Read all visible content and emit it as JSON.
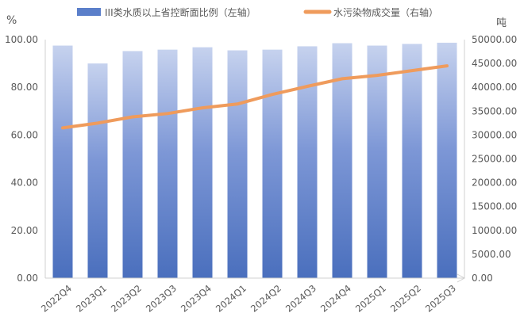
{
  "chart_data": {
    "type": "bar",
    "categories": [
      "2022Q4",
      "2023Q1",
      "2023Q2",
      "2023Q3",
      "2023Q4",
      "2024Q1",
      "2024Q2",
      "2024Q3",
      "2024Q4",
      "2025Q1",
      "2025Q2",
      "2025Q3"
    ],
    "series": [
      {
        "name": "III类水质以上省控断面比例（左轴）",
        "type": "bar",
        "axis": "left",
        "values": [
          97.5,
          90.0,
          95.2,
          95.8,
          96.8,
          95.5,
          95.8,
          97.2,
          98.5,
          97.5,
          98.2,
          98.7
        ]
      },
      {
        "name": "水污染物成交量（右轴）",
        "type": "line",
        "axis": "right",
        "values": [
          31500,
          32500,
          33800,
          34500,
          35700,
          36500,
          38500,
          40200,
          41800,
          42500,
          43500,
          44500
        ]
      }
    ],
    "y_left": {
      "unit": "%",
      "range": [
        0,
        100
      ],
      "ticks": [
        "0.00",
        "20.00",
        "40.00",
        "60.00",
        "80.00",
        "100.00"
      ]
    },
    "y_right": {
      "unit": "吨",
      "range": [
        0,
        50000
      ],
      "ticks": [
        "0.00",
        "5000.00",
        "10000.00",
        "15000.00",
        "20000.00",
        "25000.00",
        "30000.00",
        "35000.00",
        "40000.00",
        "45000.00",
        "50000.00"
      ]
    },
    "grid": false,
    "legend_position": "top",
    "colors": {
      "bar_top": "#c6d2ee",
      "bar_bottom": "#4a6fbd",
      "bar_legend": "#5b7fca",
      "line": "#ef9b5c",
      "axis": "#d0d0d0",
      "text": "#595959"
    }
  }
}
